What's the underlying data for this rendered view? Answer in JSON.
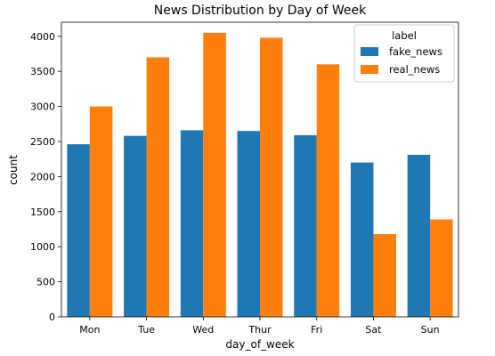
{
  "chart_data": {
    "type": "bar",
    "title": "News Distribution by Day of Week",
    "xlabel": "day_of_week",
    "ylabel": "count",
    "categories": [
      "Mon",
      "Tue",
      "Wed",
      "Thur",
      "Fri",
      "Sat",
      "Sun"
    ],
    "series": [
      {
        "name": "fake_news",
        "color": "#1f77b4",
        "values": [
          2460,
          2580,
          2660,
          2650,
          2590,
          2200,
          2310
        ]
      },
      {
        "name": "real_news",
        "color": "#ff7f0e",
        "values": [
          3000,
          3700,
          4050,
          3980,
          3600,
          1180,
          1390
        ]
      }
    ],
    "ylim": [
      0,
      4200
    ],
    "yticks": [
      0,
      500,
      1000,
      1500,
      2000,
      2500,
      3000,
      3500,
      4000
    ],
    "grid": false,
    "legend": {
      "title": "label",
      "position": "top-right"
    }
  }
}
